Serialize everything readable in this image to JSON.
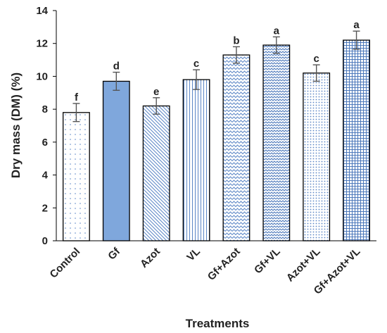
{
  "chart_data": {
    "type": "bar",
    "xlabel": "Treatments",
    "ylabel": "Dry mass (DM) (%)",
    "ylim": [
      0,
      14
    ],
    "yticks": [
      0,
      2,
      4,
      6,
      8,
      10,
      12,
      14
    ],
    "grid": false,
    "categories": [
      "Control",
      "Gf",
      "Azot",
      "VL",
      "Gf+Azot",
      "Gf+VL",
      "Azot+VL",
      "Gf+Azot+VL"
    ],
    "values": [
      7.8,
      9.7,
      8.2,
      9.8,
      11.3,
      11.9,
      10.2,
      12.2
    ],
    "errors": [
      0.55,
      0.55,
      0.5,
      0.6,
      0.5,
      0.5,
      0.5,
      0.55
    ],
    "letters": [
      "f",
      "d",
      "e",
      "c",
      "b",
      "a",
      "c",
      "a"
    ],
    "fill_patterns": [
      "dots-sparse",
      "solid",
      "diagonal-down",
      "vertical",
      "zigzag",
      "zigzag-dense",
      "dots-dense",
      "grid"
    ],
    "colors": {
      "bar_pattern": "#5b86c6",
      "bar_solid": "#7fa7dc",
      "bar_stroke": "#000000",
      "error_bar": "#555555",
      "axis": "#000000",
      "text": "#222222"
    }
  }
}
